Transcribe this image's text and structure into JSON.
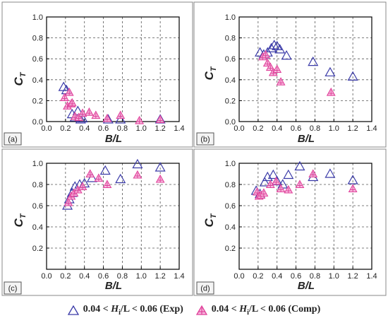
{
  "chart_data": [
    {
      "type": "scatter",
      "panel_label": "(a)",
      "xlabel": "B/L",
      "ylabel": "C_T",
      "xlim": [
        0,
        1.4
      ],
      "ylim": [
        0,
        1.0
      ],
      "xticks": [
        "0.0",
        "0.2",
        "0.4",
        "0.6",
        "0.8",
        "1.0",
        "1.2",
        "1.4"
      ],
      "yticks": [
        "0.0",
        "0.2",
        "0.4",
        "0.6",
        "0.8",
        "1.0"
      ],
      "grid": true,
      "series": [
        {
          "name": "Exp",
          "x": [
            0.18,
            0.21,
            0.27,
            0.3,
            0.33,
            0.36,
            0.38,
            0.65,
            0.78,
            1.2
          ],
          "y": [
            0.33,
            0.3,
            0.07,
            0.04,
            0.1,
            0.02,
            0.03,
            0.02,
            0.02,
            0.02
          ]
        },
        {
          "name": "Comp",
          "x": [
            0.19,
            0.22,
            0.24,
            0.26,
            0.27,
            0.3,
            0.34,
            0.38,
            0.45,
            0.52,
            0.64,
            0.78,
            0.98,
            1.2
          ],
          "y": [
            0.23,
            0.15,
            0.28,
            0.17,
            0.18,
            0.05,
            0.04,
            0.08,
            0.09,
            0.06,
            0.03,
            0.06,
            0.01,
            0.02
          ]
        }
      ]
    },
    {
      "type": "scatter",
      "panel_label": "(b)",
      "xlabel": "B/L",
      "ylabel": "C_T",
      "xlim": [
        0,
        1.4
      ],
      "ylim": [
        0,
        1.0
      ],
      "xticks": [
        "0.0",
        "0.2",
        "0.4",
        "0.6",
        "0.8",
        "1.0",
        "1.2",
        "1.4"
      ],
      "yticks": [
        "0.0",
        "0.2",
        "0.4",
        "0.6",
        "0.8",
        "1.0"
      ],
      "grid": true,
      "series": [
        {
          "name": "Exp",
          "x": [
            0.22,
            0.26,
            0.3,
            0.34,
            0.37,
            0.4,
            0.43,
            0.5,
            0.78,
            0.96,
            1.2
          ],
          "y": [
            0.66,
            0.64,
            0.66,
            0.7,
            0.73,
            0.72,
            0.69,
            0.63,
            0.57,
            0.47,
            0.43
          ]
        },
        {
          "name": "Comp",
          "x": [
            0.25,
            0.28,
            0.3,
            0.33,
            0.36,
            0.4,
            0.44,
            0.97
          ],
          "y": [
            0.62,
            0.64,
            0.56,
            0.52,
            0.47,
            0.5,
            0.38,
            0.28
          ]
        }
      ]
    },
    {
      "type": "scatter",
      "panel_label": "(c)",
      "xlabel": "B/L",
      "ylabel": "C_T",
      "xlim": [
        0,
        1.4
      ],
      "ylim": [
        0,
        1.0
      ],
      "xticks": [
        "0.0",
        "0.2",
        "0.4",
        "0.6",
        "0.8",
        "1.0",
        "1.2",
        "1.4"
      ],
      "yticks": [
        "0.2",
        "0.4",
        "0.6",
        "0.8",
        "1.0"
      ],
      "grid": true,
      "series": [
        {
          "name": "Exp",
          "x": [
            0.22,
            0.24,
            0.27,
            0.3,
            0.35,
            0.4,
            0.48,
            0.62,
            0.78,
            0.96,
            1.2
          ],
          "y": [
            0.6,
            0.66,
            0.72,
            0.78,
            0.8,
            0.81,
            0.86,
            0.93,
            0.85,
            0.99,
            0.96
          ]
        },
        {
          "name": "Comp",
          "x": [
            0.23,
            0.26,
            0.29,
            0.33,
            0.38,
            0.46,
            0.55,
            0.64,
            0.96,
            1.2
          ],
          "y": [
            0.63,
            0.69,
            0.72,
            0.75,
            0.78,
            0.9,
            0.86,
            0.8,
            0.89,
            0.85
          ]
        }
      ]
    },
    {
      "type": "scatter",
      "panel_label": "(d)",
      "xlabel": "B/L",
      "ylabel": "C_T",
      "xlim": [
        0,
        1.4
      ],
      "ylim": [
        0,
        1.0
      ],
      "xticks": [
        "0.0",
        "0.2",
        "0.4",
        "0.6",
        "0.8",
        "1.0",
        "1.2",
        "1.4"
      ],
      "yticks": [
        "0.2",
        "0.4",
        "0.6",
        "0.8",
        "1.0"
      ],
      "grid": true,
      "series": [
        {
          "name": "Exp",
          "x": [
            0.18,
            0.22,
            0.27,
            0.3,
            0.36,
            0.4,
            0.46,
            0.52,
            0.64,
            0.78,
            0.96,
            1.2
          ],
          "y": [
            0.74,
            0.71,
            0.82,
            0.87,
            0.89,
            0.83,
            0.8,
            0.89,
            0.97,
            0.87,
            0.9,
            0.84
          ]
        },
        {
          "name": "Comp",
          "x": [
            0.19,
            0.21,
            0.23,
            0.26,
            0.33,
            0.39,
            0.44,
            0.52,
            0.64,
            0.78,
            1.2
          ],
          "y": [
            0.73,
            0.69,
            0.7,
            0.72,
            0.8,
            0.83,
            0.76,
            0.75,
            0.8,
            0.9,
            0.76
          ]
        }
      ]
    }
  ],
  "legend": {
    "exp_prefix": "0.04 < ",
    "exp_var": "H",
    "exp_sub": "i",
    "exp_suffix": "/L < 0.06 (Exp)",
    "comp_prefix": "0.04 < ",
    "comp_var": "H",
    "comp_sub": "i",
    "comp_suffix": "/L < 0.06 (Comp)"
  },
  "colors": {
    "exp": "#3a3aa8",
    "comp": "#e0409a",
    "comp_fill": "#f6b6dc",
    "grid": "#555555",
    "axis": "#000000",
    "panel_border": "#888888"
  }
}
